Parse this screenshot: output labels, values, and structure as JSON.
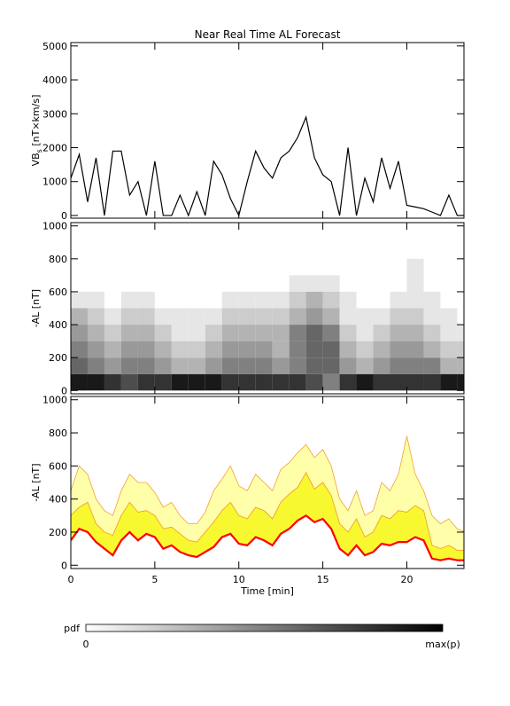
{
  "chart_data": [
    {
      "type": "line",
      "title": "Near Real Time AL Forecast",
      "ylabel": {
        "main": "VB",
        "sub": "s",
        "unit": " [nT×km/s]"
      },
      "xlim": [
        0,
        23.4
      ],
      "ylim": [
        -80,
        5100
      ],
      "yticks": [
        0,
        1000,
        2000,
        3000,
        4000,
        5000
      ],
      "x": [
        0,
        0.5,
        1,
        1.5,
        2,
        2.5,
        3,
        3.5,
        4,
        4.5,
        5,
        5.5,
        6,
        6.5,
        7,
        7.5,
        8,
        8.5,
        9,
        9.5,
        10,
        10.5,
        11,
        11.5,
        12,
        12.5,
        13,
        13.5,
        14,
        14.5,
        15,
        15.5,
        16,
        16.5,
        17,
        17.5,
        18,
        18.5,
        19,
        19.5,
        20,
        20.5,
        21,
        21.5,
        22,
        22.5,
        23,
        23.5
      ],
      "series": [
        {
          "color": "#000000",
          "values": [
            1100,
            1800,
            400,
            1700,
            0,
            1900,
            1900,
            600,
            1000,
            0,
            1600,
            0,
            0,
            600,
            0,
            700,
            0,
            1600,
            1200,
            500,
            0,
            1000,
            1900,
            1400,
            1100,
            1700,
            1900,
            2300,
            2900,
            1700,
            1200,
            1000,
            0,
            2000,
            0,
            1100,
            400,
            1700,
            800,
            1600,
            300,
            250,
            200,
            100,
            0,
            600,
            0,
            0
          ]
        }
      ]
    },
    {
      "type": "heatmap",
      "ylabel": "-AL [nT]",
      "xlim": [
        0,
        23.4
      ],
      "ylim": [
        -20,
        1020
      ],
      "yticks": [
        0,
        200,
        400,
        600,
        800,
        1000
      ],
      "xbins": [
        0,
        1,
        2,
        3,
        4,
        5,
        6,
        7,
        8,
        9,
        10,
        11,
        12,
        13,
        14,
        15,
        16,
        17,
        18,
        19,
        20,
        21,
        22,
        23,
        24
      ],
      "ybins": [
        0,
        100,
        200,
        300,
        400,
        500,
        600,
        700,
        800
      ],
      "z": [
        [
          0.9,
          0.9,
          0.8,
          0.7,
          0.8,
          0.8,
          0.9,
          0.9,
          0.9,
          0.8,
          0.8,
          0.8,
          0.8,
          0.8,
          0.7,
          0.5,
          0.8,
          0.9,
          0.8,
          0.8,
          0.8,
          0.8,
          0.9,
          0.9
        ],
        [
          0.6,
          0.5,
          0.4,
          0.5,
          0.5,
          0.4,
          0.3,
          0.3,
          0.4,
          0.5,
          0.5,
          0.5,
          0.4,
          0.5,
          0.6,
          0.6,
          0.4,
          0.3,
          0.4,
          0.5,
          0.5,
          0.5,
          0.3,
          0.3
        ],
        [
          0.5,
          0.4,
          0.3,
          0.4,
          0.4,
          0.3,
          0.2,
          0.2,
          0.3,
          0.4,
          0.4,
          0.4,
          0.3,
          0.5,
          0.6,
          0.6,
          0.3,
          0.2,
          0.3,
          0.4,
          0.4,
          0.3,
          0.2,
          0.2
        ],
        [
          0.4,
          0.3,
          0.2,
          0.3,
          0.3,
          0.2,
          0.1,
          0.1,
          0.2,
          0.3,
          0.3,
          0.3,
          0.3,
          0.5,
          0.6,
          0.5,
          0.2,
          0.1,
          0.2,
          0.3,
          0.3,
          0.2,
          0.1,
          0.1
        ],
        [
          0.3,
          0.2,
          0.1,
          0.2,
          0.2,
          0.1,
          0.1,
          0.1,
          0.1,
          0.2,
          0.2,
          0.2,
          0.2,
          0.3,
          0.4,
          0.3,
          0.1,
          0.1,
          0.1,
          0.2,
          0.2,
          0.1,
          0.1,
          0
        ],
        [
          0.1,
          0.1,
          0,
          0.1,
          0.1,
          0,
          0,
          0,
          0,
          0.1,
          0.1,
          0.1,
          0.1,
          0.2,
          0.3,
          0.2,
          0.1,
          0,
          0,
          0.1,
          0.1,
          0.1,
          0,
          0
        ],
        [
          0,
          0,
          0,
          0,
          0,
          0,
          0,
          0,
          0,
          0,
          0,
          0,
          0,
          0.1,
          0.1,
          0.1,
          0,
          0,
          0,
          0,
          0.1,
          0,
          0,
          0
        ],
        [
          0,
          0,
          0,
          0,
          0,
          0,
          0,
          0,
          0,
          0,
          0,
          0,
          0,
          0,
          0,
          0,
          0,
          0,
          0,
          0,
          0.1,
          0,
          0,
          0
        ]
      ],
      "colorbar": {
        "label": "pdf",
        "min_label": "0",
        "max_label": "max(p)"
      }
    },
    {
      "type": "band",
      "ylabel": "-AL [nT]",
      "xlabel": "Time [min]",
      "xlim": [
        0,
        23.4
      ],
      "ylim": [
        -20,
        1020
      ],
      "yticks": [
        0,
        200,
        400,
        600,
        800,
        1000
      ],
      "xticks": [
        0,
        5,
        10,
        15,
        20
      ],
      "x": [
        0,
        0.5,
        1,
        1.5,
        2,
        2.5,
        3,
        3.5,
        4,
        4.5,
        5,
        5.5,
        6,
        6.5,
        7,
        7.5,
        8,
        8.5,
        9,
        9.5,
        10,
        10.5,
        11,
        11.5,
        12,
        12.5,
        13,
        13.5,
        14,
        14.5,
        15,
        15.5,
        16,
        16.5,
        17,
        17.5,
        18,
        18.5,
        19,
        19.5,
        20,
        20.5,
        21,
        21.5,
        22,
        22.5,
        23,
        23.5
      ],
      "series": [
        {
          "color": "#ff0000",
          "values": [
            150,
            220,
            200,
            140,
            100,
            60,
            150,
            200,
            150,
            190,
            170,
            100,
            120,
            80,
            60,
            50,
            80,
            110,
            170,
            190,
            130,
            120,
            170,
            150,
            120,
            190,
            220,
            270,
            300,
            260,
            280,
            220,
            100,
            60,
            120,
            60,
            80,
            130,
            120,
            140,
            140,
            170,
            150,
            40,
            30,
            40,
            30,
            30
          ]
        },
        {
          "color": "#f8f830",
          "values": [
            300,
            350,
            380,
            250,
            200,
            180,
            300,
            380,
            320,
            330,
            300,
            220,
            230,
            190,
            150,
            140,
            200,
            260,
            330,
            380,
            300,
            280,
            350,
            330,
            280,
            380,
            430,
            470,
            560,
            460,
            500,
            420,
            250,
            200,
            280,
            170,
            200,
            300,
            280,
            330,
            320,
            360,
            330,
            120,
            100,
            120,
            90,
            90
          ]
        },
        {
          "color": "#ffffaa",
          "values": [
            450,
            600,
            550,
            400,
            330,
            300,
            450,
            550,
            500,
            500,
            440,
            350,
            380,
            300,
            250,
            250,
            320,
            450,
            520,
            600,
            480,
            450,
            550,
            500,
            450,
            580,
            620,
            680,
            730,
            650,
            700,
            600,
            400,
            330,
            450,
            300,
            330,
            500,
            450,
            550,
            780,
            550,
            450,
            300,
            250,
            280,
            220,
            200
          ]
        }
      ],
      "band_outline": "#f0a030"
    }
  ]
}
